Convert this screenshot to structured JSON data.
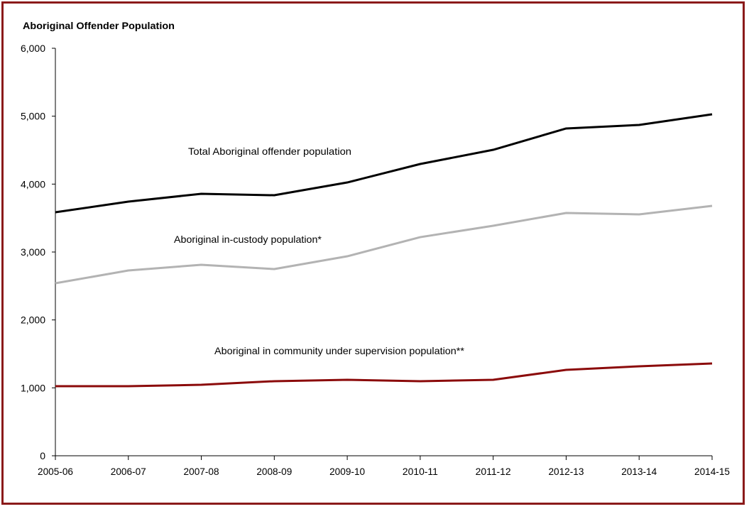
{
  "chart_data": {
    "type": "line",
    "title": "Aboriginal Offender Population",
    "xlabel": "",
    "ylabel": "",
    "categories": [
      "2005-06",
      "2006-07",
      "2007-08",
      "2008-09",
      "2009-10",
      "2010-11",
      "2011-12",
      "2012-13",
      "2013-14",
      "2014-15"
    ],
    "ylim": [
      0,
      6000
    ],
    "yticks": [
      0,
      1000,
      2000,
      3000,
      4000,
      5000,
      6000
    ],
    "ytick_labels": [
      "0",
      "1,000",
      "2,000",
      "3,000",
      "4,000",
      "5,000",
      "6,000"
    ],
    "grid": false,
    "series": [
      {
        "name": "Total Aboriginal offender population",
        "color": "#000000",
        "values": [
          3585,
          3742,
          3857,
          3836,
          4024,
          4296,
          4505,
          4819,
          4871,
          5028
        ]
      },
      {
        "name": "Aboriginal in-custody population*",
        "color": "#b3b3b3",
        "values": [
          2540,
          2728,
          2812,
          2749,
          2937,
          3219,
          3387,
          3575,
          3554,
          3679
        ]
      },
      {
        "name": "Aboriginal in community under supervision population**",
        "color": "#8b0a0a",
        "values": [
          1024,
          1024,
          1045,
          1098,
          1118,
          1098,
          1118,
          1265,
          1317,
          1359
        ]
      }
    ]
  }
}
